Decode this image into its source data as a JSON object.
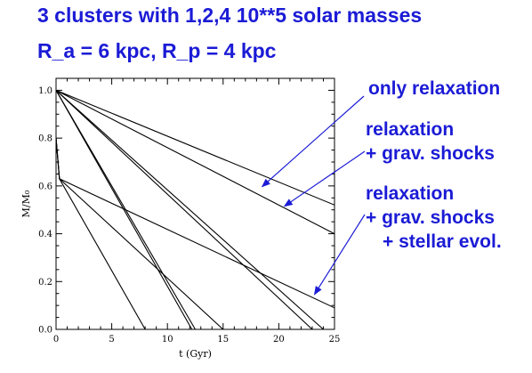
{
  "title": {
    "line1": "3 clusters with 1,2,4  10**5 solar masses",
    "line2": "R_a = 6 kpc, R_p = 4 kpc"
  },
  "annotations": {
    "relaxation_only": "only relaxation",
    "shocks_line1": "relaxation",
    "shocks_line2": "+ grav. shocks",
    "evol_line1": "relaxation",
    "evol_line2": "+ grav. shocks",
    "evol_line3": "+ stellar evol.",
    "color": "#1b1bd6"
  },
  "chart_data": {
    "type": "line",
    "xlabel": "t (Gyr)",
    "ylabel": "M/M₀",
    "xlim": [
      0,
      25
    ],
    "ylim": [
      0,
      1.05
    ],
    "xticks": [
      0,
      5,
      10,
      15,
      20,
      25
    ],
    "yticks": [
      0.0,
      0.2,
      0.4,
      0.6,
      0.8,
      1.0
    ],
    "xtick_labels": [
      "0",
      "5",
      "10",
      "15",
      "20",
      "25"
    ],
    "ytick_labels": [
      "0.0",
      "0.2",
      "0.4",
      "0.6",
      "0.8",
      "1.0"
    ],
    "grid": false,
    "series": [
      {
        "group": "relaxation",
        "x": [
          0,
          25
        ],
        "y": [
          1.0,
          0.52
        ]
      },
      {
        "group": "relaxation",
        "x": [
          0,
          25
        ],
        "y": [
          1.0,
          0.4
        ]
      },
      {
        "group": "relaxation",
        "x": [
          0,
          23
        ],
        "y": [
          1.0,
          0.0
        ]
      },
      {
        "group": "shocks",
        "x": [
          0,
          24
        ],
        "y": [
          1.0,
          0.0
        ]
      },
      {
        "group": "shocks",
        "x": [
          0,
          12.5
        ],
        "y": [
          1.0,
          0.0
        ]
      },
      {
        "group": "shocks",
        "x": [
          0,
          12.2
        ],
        "y": [
          1.0,
          0.0
        ]
      },
      {
        "group": "evolution",
        "x": [
          0,
          0.3,
          25
        ],
        "y": [
          0.8,
          0.63,
          0.09
        ]
      },
      {
        "group": "evolution",
        "x": [
          0,
          0.3,
          15
        ],
        "y": [
          0.8,
          0.63,
          0.0
        ]
      },
      {
        "group": "evolution",
        "x": [
          0,
          0.3,
          8
        ],
        "y": [
          0.8,
          0.63,
          0.0
        ]
      }
    ],
    "arrows": [
      {
        "label": "only relaxation",
        "from_label": "relaxation_only",
        "to": [
          18.5,
          0.597
        ]
      },
      {
        "label": "relaxation + grav. shocks",
        "from_label": "shocks",
        "to": [
          20.5,
          0.515
        ]
      },
      {
        "label": "relaxation + grav. shocks + stellar evol.",
        "from_label": "evolution",
        "to": [
          23.2,
          0.146
        ]
      }
    ]
  }
}
